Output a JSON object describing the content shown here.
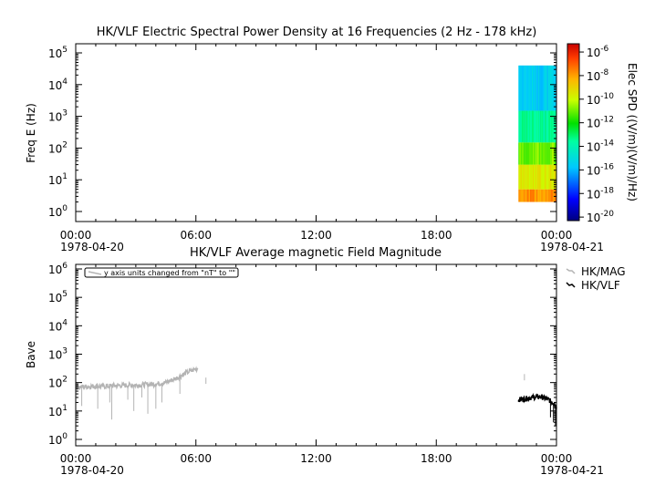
{
  "chart_data": [
    {
      "type": "heatmap",
      "title": "HK/VLF  Electric Spectral Power Density at 16 Frequencies (2 Hz - 178 kHz)",
      "ylabel": "Freq E (Hz)",
      "y_log": true,
      "y_ticks": [
        {
          "base": "10",
          "exp": "0"
        },
        {
          "base": "10",
          "exp": "1"
        },
        {
          "base": "10",
          "exp": "2"
        },
        {
          "base": "10",
          "exp": "3"
        },
        {
          "base": "10",
          "exp": "4"
        },
        {
          "base": "10",
          "exp": "5"
        }
      ],
      "x_ticks": [
        "00:00",
        "06:00",
        "12:00",
        "18:00",
        "00:00"
      ],
      "x_hours": [
        0,
        6,
        12,
        18,
        24
      ],
      "x_dates": [
        "1978-04-20",
        "1978-04-21"
      ],
      "colorbar": {
        "label": "Elec SPD  ((V/m)(V/m)/Hz)",
        "ticks": [
          {
            "base": "10",
            "exp": "-20"
          },
          {
            "base": "10",
            "exp": "-18"
          },
          {
            "base": "10",
            "exp": "-16"
          },
          {
            "base": "10",
            "exp": "-14"
          },
          {
            "base": "10",
            "exp": "-12"
          },
          {
            "base": "10",
            "exp": "-10"
          },
          {
            "base": "10",
            "exp": "-8"
          },
          {
            "base": "10",
            "exp": "-6"
          }
        ],
        "range_log": [
          -20.3,
          -5.3
        ]
      },
      "data_time_range_hours": [
        22.1,
        24
      ],
      "bands": [
        {
          "freq_low": 2,
          "freq_high": 5,
          "log_spd": -7.8
        },
        {
          "freq_low": 5,
          "freq_high": 30,
          "log_spd": -9.5
        },
        {
          "freq_low": 30,
          "freq_high": 150,
          "log_spd": -11.0
        },
        {
          "freq_low": 150,
          "freq_high": 1500,
          "log_spd": -13.5
        },
        {
          "freq_low": 1500,
          "freq_high": 40000,
          "log_spd": -15.5
        }
      ]
    },
    {
      "type": "line",
      "title": "HK/VLF  Average magnetic Field Magnitude",
      "ylabel": "Bave",
      "y_log": true,
      "ylim": [
        1,
        1000000
      ],
      "y_ticks": [
        {
          "base": "10",
          "exp": "0"
        },
        {
          "base": "10",
          "exp": "1"
        },
        {
          "base": "10",
          "exp": "2"
        },
        {
          "base": "10",
          "exp": "3"
        },
        {
          "base": "10",
          "exp": "4"
        },
        {
          "base": "10",
          "exp": "5"
        },
        {
          "base": "10",
          "exp": "6"
        }
      ],
      "x_ticks": [
        "00:00",
        "06:00",
        "12:00",
        "18:00",
        "00:00"
      ],
      "x_hours": [
        0,
        6,
        12,
        18,
        24
      ],
      "x_dates": [
        "1978-04-20",
        "1978-04-21"
      ],
      "annotation": "y axis units changed from \"nT\" to \"\"",
      "series": [
        {
          "name": "HK/MAG",
          "color": "#b4b4b4",
          "x": [
            0,
            0.5,
            1,
            1.5,
            2,
            2.5,
            3,
            3.5,
            4,
            4.5,
            5,
            5.5,
            6.1
          ],
          "y": [
            70,
            72,
            75,
            74,
            78,
            80,
            82,
            85,
            90,
            100,
            140,
            220,
            320
          ],
          "dips": [
            {
              "x": 0.3,
              "y": 15
            },
            {
              "x": 1.1,
              "y": 12
            },
            {
              "x": 1.7,
              "y": 20
            },
            {
              "x": 1.8,
              "y": 5
            },
            {
              "x": 2.6,
              "y": 25
            },
            {
              "x": 2.9,
              "y": 10
            },
            {
              "x": 3.3,
              "y": 30
            },
            {
              "x": 3.6,
              "y": 8
            },
            {
              "x": 4.0,
              "y": 12
            },
            {
              "x": 4.3,
              "y": 20
            },
            {
              "x": 5.2,
              "y": 40
            }
          ],
          "extra_points": [
            {
              "x": 6.5,
              "y": 150
            },
            {
              "x": 22.4,
              "y": 200
            }
          ]
        },
        {
          "name": "HK/VLF",
          "color": "#000000",
          "x": [
            22.1,
            22.4,
            22.8,
            23.2,
            23.6,
            23.9,
            24
          ],
          "y": [
            25,
            27,
            30,
            32,
            25,
            18,
            12
          ],
          "dips": [
            {
              "x": 23.85,
              "y": 4
            },
            {
              "x": 23.95,
              "y": 3
            },
            {
              "x": 23.7,
              "y": 6
            }
          ]
        }
      ]
    }
  ]
}
